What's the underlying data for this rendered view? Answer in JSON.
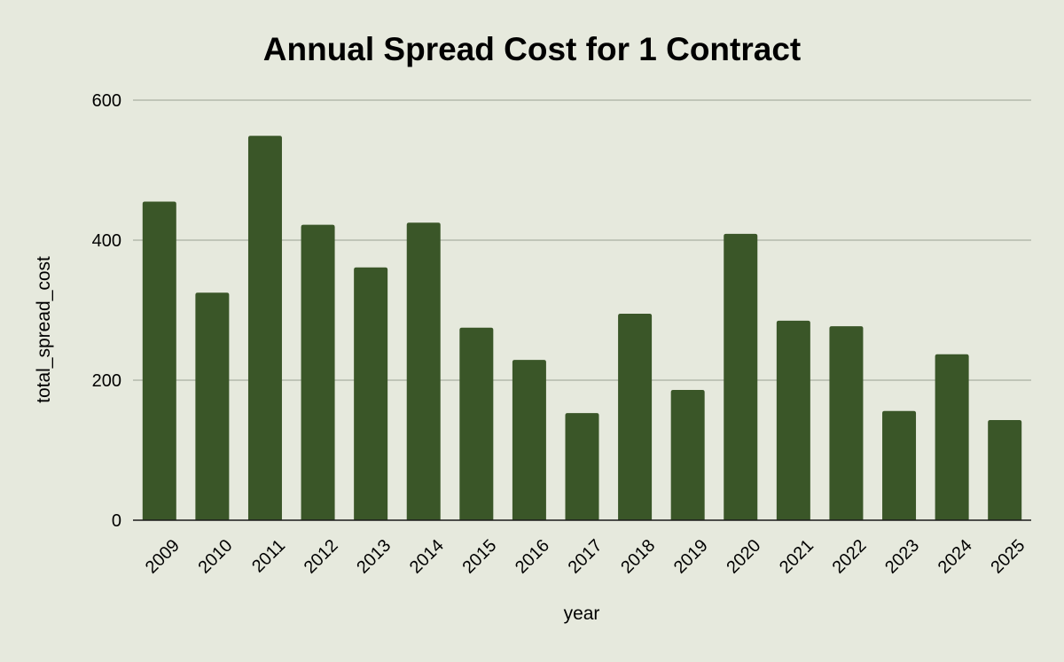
{
  "chart_data": {
    "type": "bar",
    "title": "Annual Spread Cost for 1 Contract",
    "xlabel": "year",
    "ylabel": "total_spread_cost",
    "categories": [
      "2009",
      "2010",
      "2011",
      "2012",
      "2013",
      "2014",
      "2015",
      "2016",
      "2017",
      "2018",
      "2019",
      "2020",
      "2021",
      "2022",
      "2023",
      "2024",
      "2025"
    ],
    "values": [
      455,
      325,
      549,
      422,
      361,
      425,
      275,
      229,
      153,
      295,
      186,
      409,
      285,
      277,
      156,
      237,
      143
    ],
    "ylim": [
      0,
      600
    ],
    "yticks": [
      0,
      200,
      400,
      600
    ],
    "grid": true,
    "legend": "none"
  },
  "colors": {
    "background": "#e6e9dd",
    "bar": "#3a5628",
    "gridline": "#a9b0a3",
    "axis": "#1a1a1a"
  }
}
